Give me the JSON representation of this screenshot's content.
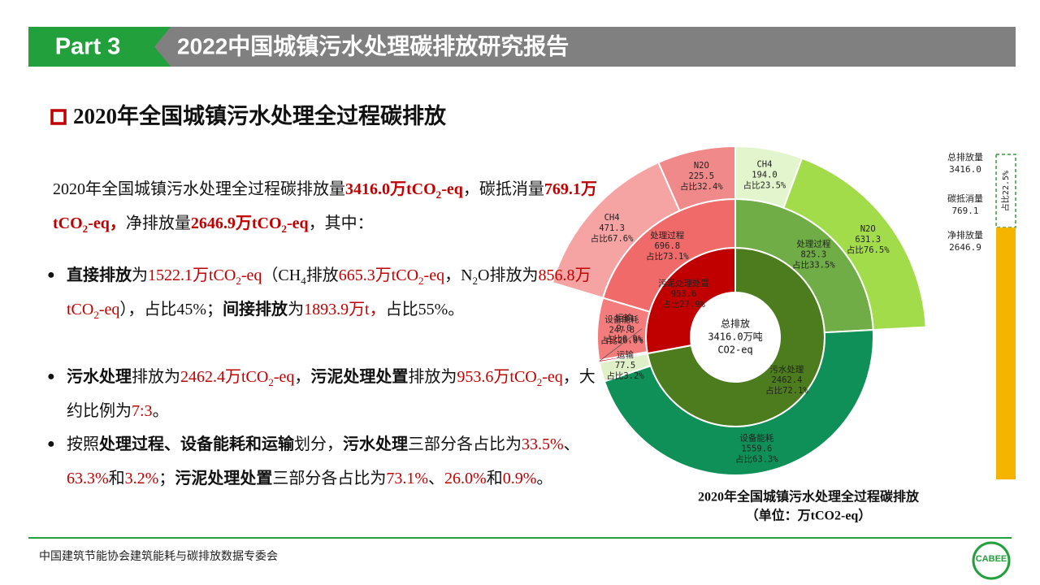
{
  "header": {
    "part": "Part 3",
    "title": "2022中国城镇污水处理碳排放研究报告"
  },
  "section_title": "2020年全国城镇污水处理全过程碳排放",
  "body": {
    "paragraphs": [
      {
        "runs": [
          {
            "text": "2020年全国城镇污水处理全过程碳排放量"
          },
          {
            "text": "3416.0万tCO",
            "style": "red bold"
          },
          {
            "text": "2",
            "style": "red bold sub"
          },
          {
            "text": "-eq",
            "style": "red bold"
          },
          {
            "text": "，碳抵消量"
          },
          {
            "text": "769.1万tCO",
            "style": "red bold"
          },
          {
            "text": "2",
            "style": "red bold sub"
          },
          {
            "text": "-eq，",
            "style": "red bold"
          },
          {
            "text": "净排放量"
          },
          {
            "text": "2646.9万tCO",
            "style": "red bold"
          },
          {
            "text": "2",
            "style": "red bold sub"
          },
          {
            "text": "-eq",
            "style": "red bold"
          },
          {
            "text": "，其中："
          }
        ]
      },
      {
        "runs": [
          {
            "text": "直接排放",
            "style": "bold"
          },
          {
            "text": "为"
          },
          {
            "text": "1522.1万tCO",
            "style": "red"
          },
          {
            "text": "2",
            "style": "red sub"
          },
          {
            "text": "-eq",
            "style": "red"
          },
          {
            "text": "（CH"
          },
          {
            "text": "4",
            "style": "sub"
          },
          {
            "text": "排放"
          },
          {
            "text": "665.3万tCO",
            "style": "red"
          },
          {
            "text": "2",
            "style": "red sub"
          },
          {
            "text": "-eq",
            "style": "red"
          },
          {
            "text": "，N"
          },
          {
            "text": "2",
            "style": "sub"
          },
          {
            "text": "O排放为"
          },
          {
            "text": "856.8万tCO",
            "style": "red"
          },
          {
            "text": "2",
            "style": "red sub"
          },
          {
            "text": "-eq",
            "style": "red"
          },
          {
            "text": "），占比45%；"
          },
          {
            "text": "间接排放",
            "style": "bold"
          },
          {
            "text": "为"
          },
          {
            "text": "1893.9万t，",
            "style": "red"
          },
          {
            "text": "占比55%。"
          }
        ]
      },
      {
        "runs": [
          {
            "text": "污水处理",
            "style": "bold"
          },
          {
            "text": "排放为"
          },
          {
            "text": "2462.4万tCO",
            "style": "red"
          },
          {
            "text": "2",
            "style": "red sub"
          },
          {
            "text": "-eq",
            "style": "red"
          },
          {
            "text": "，"
          },
          {
            "text": "污泥处理处置",
            "style": "bold"
          },
          {
            "text": "排放为"
          },
          {
            "text": "953.6万tCO",
            "style": "red"
          },
          {
            "text": "2",
            "style": "red sub"
          },
          {
            "text": "-eq",
            "style": "red"
          },
          {
            "text": "，大约比例为"
          },
          {
            "text": "7:3",
            "style": "red"
          },
          {
            "text": "。"
          }
        ]
      },
      {
        "runs": [
          {
            "text": "按照"
          },
          {
            "text": "处理过程、设备能耗和运输",
            "style": "bold"
          },
          {
            "text": "划分，"
          },
          {
            "text": "污水处理",
            "style": "bold"
          },
          {
            "text": "三部分各占比为"
          },
          {
            "text": "33.5%",
            "style": "red"
          },
          {
            "text": "、"
          },
          {
            "text": "63.3%",
            "style": "red"
          },
          {
            "text": "和"
          },
          {
            "text": "3.2%",
            "style": "red"
          },
          {
            "text": "；"
          },
          {
            "text": "污泥处理处置",
            "style": "bold"
          },
          {
            "text": "三部分各占比为"
          },
          {
            "text": "73.1%",
            "style": "red"
          },
          {
            "text": "、"
          },
          {
            "text": "26.0%",
            "style": "red"
          },
          {
            "text": "和"
          },
          {
            "text": "0.9%",
            "style": "red"
          },
          {
            "text": "。"
          }
        ]
      }
    ]
  },
  "sunburst": {
    "center": [
      "总排放",
      "3416.0万吨",
      "CO2-eq"
    ],
    "nodes": [
      {
        "name": "污水处理",
        "value": 2462.4,
        "share": "占比72.1%",
        "color": "#4d7c1e",
        "children": [
          {
            "name": "处理过程",
            "value": 825.3,
            "share": "占比33.5%",
            "color": "#70ad47",
            "children": [
              {
                "name": "CH4",
                "value": 194.0,
                "value_label": "194.0",
                "share": "占比23.5%",
                "color": "#e2f5cc"
              },
              {
                "name": "N2O",
                "value": 631.3,
                "share": "占比76.5%",
                "color": "#a3dc4a"
              }
            ]
          },
          {
            "name": "设备能耗",
            "value": 1559.6,
            "share": "占比63.3%",
            "color": "#0f9058"
          },
          {
            "name": "运输",
            "value": 77.5,
            "share": "占比3.2%",
            "color": "#dff0c8"
          }
        ]
      },
      {
        "name": "污泥处理处置",
        "value": 953.6,
        "share": "占比27.9%",
        "color": "#c00000",
        "children": [
          {
            "name": "运输",
            "value": 9.0,
            "value_label": "9.0",
            "share": "占比0.9%",
            "color": "#c00000"
          },
          {
            "name": "设备能耗",
            "value": 247.8,
            "share": "占比26.0%",
            "color": "#f47c7c"
          },
          {
            "name": "处理过程",
            "value": 696.8,
            "share": "占比73.1%",
            "color": "#f06a6a",
            "children": [
              {
                "name": "CH4",
                "value": 471.3,
                "share": "占比67.6%",
                "color": "#f5a3a3"
              },
              {
                "name": "N2O",
                "value": 225.5,
                "share": "占比32.4%",
                "color": "#f08a8a"
              }
            ]
          }
        ]
      }
    ],
    "caption": [
      "2020年全国城镇污水处理全过程碳排放",
      "（单位：万tCO2-eq）"
    ]
  },
  "balance": {
    "items": [
      {
        "name": "总排放量",
        "value": 3416.0,
        "value_label": "3416.0"
      },
      {
        "name": "碳抵消量",
        "value": 769.1
      },
      {
        "name": "净排放量",
        "value": 2646.9
      }
    ],
    "offset_share": "占比22.5%",
    "offset_color": "#3a9a3a",
    "net_color": "#f5b400"
  },
  "footer": {
    "text": "中国建筑节能协会建筑能耗与碳排放数据专委会",
    "logo": "CABEE"
  }
}
